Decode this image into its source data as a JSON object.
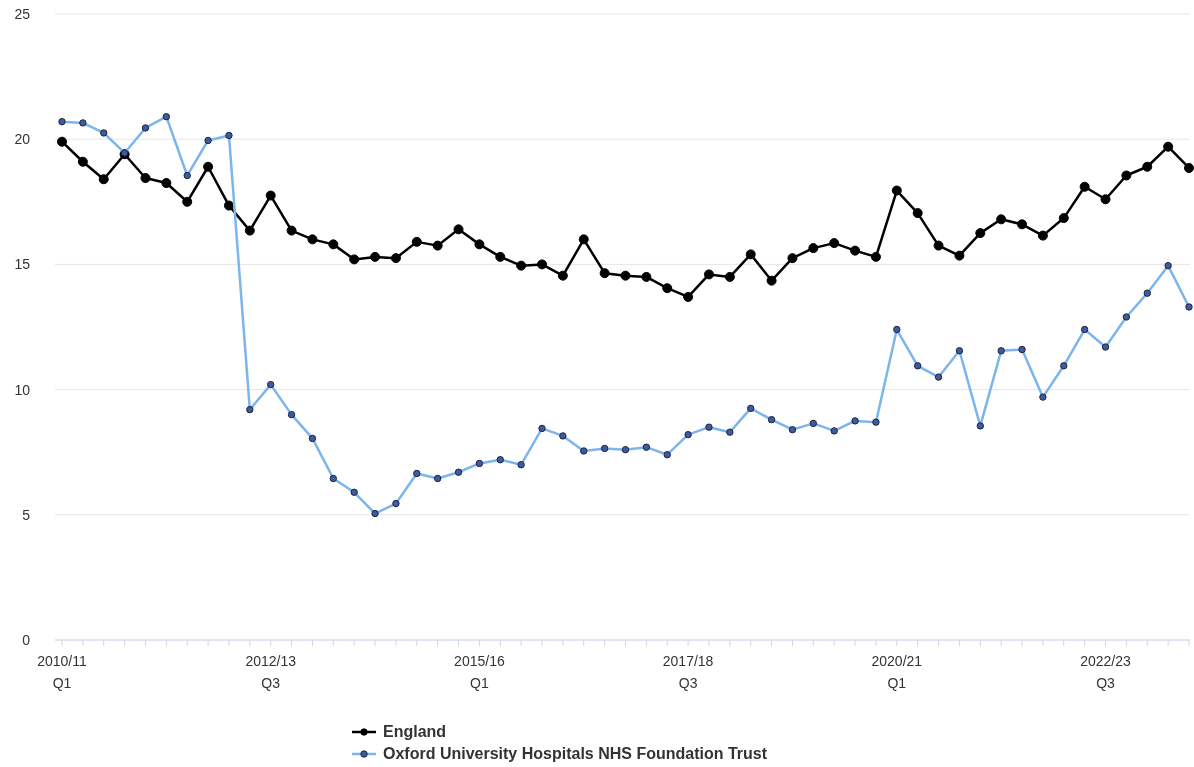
{
  "chart_data": {
    "type": "line",
    "categories": [
      "2010/11\nQ1",
      null,
      null,
      null,
      null,
      null,
      null,
      null,
      null,
      null,
      "2012/13\nQ3",
      null,
      null,
      null,
      null,
      null,
      null,
      null,
      null,
      null,
      "2015/16\nQ1",
      null,
      null,
      null,
      null,
      null,
      null,
      null,
      null,
      null,
      "2017/18\nQ3",
      null,
      null,
      null,
      null,
      null,
      null,
      null,
      null,
      null,
      "2020/21\nQ1",
      null,
      null,
      null,
      null,
      null,
      null,
      null,
      null,
      null,
      "2022/23\nQ3",
      null,
      null,
      null,
      null
    ],
    "series": [
      {
        "name": "England",
        "color": "#000000",
        "values": [
          19.9,
          19.1,
          18.4,
          19.4,
          18.45,
          18.25,
          17.5,
          18.9,
          17.35,
          16.35,
          17.75,
          16.35,
          16.0,
          15.8,
          15.2,
          15.3,
          15.25,
          15.9,
          15.75,
          16.4,
          15.8,
          15.3,
          14.95,
          15.0,
          14.55,
          16.0,
          14.65,
          14.55,
          14.5,
          14.05,
          13.7,
          14.6,
          14.5,
          15.4,
          14.35,
          15.25,
          15.65,
          15.85,
          15.55,
          15.3,
          17.95,
          17.05,
          15.75,
          15.35,
          16.25,
          16.8,
          16.6,
          16.15,
          16.85,
          18.1,
          17.6,
          18.55,
          18.9,
          19.7,
          18.85
        ]
      },
      {
        "name": "Oxford University Hospitals NHS Foundation Trust",
        "color": "#7cb5ec",
        "values": [
          20.7,
          20.65,
          20.25,
          19.45,
          20.45,
          20.9,
          18.55,
          19.95,
          20.15,
          9.2,
          10.2,
          9.0,
          8.05,
          6.45,
          5.9,
          5.05,
          5.45,
          6.65,
          6.45,
          6.7,
          7.05,
          7.2,
          7.0,
          8.45,
          8.15,
          7.55,
          7.65,
          7.6,
          7.7,
          7.4,
          8.2,
          8.5,
          8.3,
          9.25,
          8.8,
          8.4,
          8.65,
          8.35,
          8.75,
          8.7,
          12.4,
          10.95,
          10.5,
          11.55,
          8.55,
          11.55,
          11.6,
          9.7,
          10.95,
          12.4,
          11.7,
          12.9,
          13.85,
          14.95,
          13.3
        ]
      }
    ],
    "ylim": [
      0,
      25
    ],
    "yticks": [
      0,
      5,
      10,
      15,
      20,
      25
    ],
    "grid": "y",
    "legend": "bottom",
    "marker": "circle",
    "line_style": "solid"
  }
}
